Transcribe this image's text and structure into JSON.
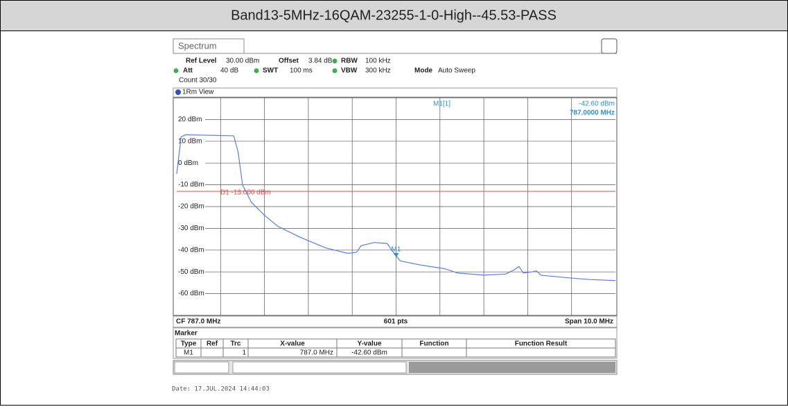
{
  "header": {
    "title": "Band13-5MHz-16QAM-23255-1-0-High--45.53-PASS"
  },
  "instrument": {
    "tab": "Spectrum",
    "settings": [
      {
        "label": "Ref Level",
        "value": "30.00 dBm"
      },
      {
        "label": "Offset",
        "value": "3.84 dB"
      },
      {
        "label": "RBW",
        "value": "100 kHz"
      },
      {
        "label": "Att",
        "value": "40 dB"
      },
      {
        "label": "SWT",
        "value": "100 ms"
      },
      {
        "label": "VBW",
        "value": "300 kHz"
      },
      {
        "label": "Mode",
        "value": "Auto Sweep"
      }
    ],
    "count": "Count 30/30",
    "view": "1Rm View",
    "readout": {
      "name": "M1[1]",
      "level": "-42.60 dBm",
      "frequency": "787.0000 MHz"
    },
    "footer": {
      "center_frequency": "CF 787.0 MHz",
      "points": "601 pts",
      "span": "Span 10.0 MHz"
    },
    "marker_table": {
      "title": "Marker",
      "columns": [
        "Type",
        "Ref",
        "Trc",
        "X-value",
        "Y-value",
        "Function",
        "Function Result"
      ],
      "row": {
        "type": "M1",
        "trace": "1",
        "x": "787.0 MHz",
        "y": "-42.60 dBm"
      }
    },
    "date": "Date: 17.JUL.2024  14:44:03"
  },
  "chart_data": {
    "type": "line",
    "xlim": [
      782,
      792
    ],
    "ylim": [
      -70,
      30
    ],
    "yticks": [
      {
        "value": 20,
        "label": "20 dBm"
      },
      {
        "value": 10,
        "label": "10 dBm"
      },
      {
        "value": 0,
        "label": "0 dBm"
      },
      {
        "value": -10,
        "label": "-10 dBm"
      },
      {
        "value": -20,
        "label": "-20 dBm"
      },
      {
        "value": -30,
        "label": "-30 dBm"
      },
      {
        "value": -40,
        "label": "-40 dBm"
      },
      {
        "value": -50,
        "label": "-50 dBm"
      },
      {
        "value": -60,
        "label": "-60 dBm"
      }
    ],
    "grid": true,
    "x": [
      782.0,
      782.1,
      782.2,
      783.3,
      783.4,
      783.5,
      783.7,
      784.0,
      784.3,
      784.8,
      785.4,
      785.9,
      786.1,
      786.2,
      786.5,
      786.8,
      786.9,
      787.0,
      787.1,
      787.6,
      788.1,
      788.4,
      789.0,
      789.5,
      789.7,
      789.8,
      789.9,
      790.1,
      790.2,
      790.3,
      790.8,
      791.4,
      792.0
    ],
    "series": [
      {
        "color": "#5b7de3",
        "values": [
          -5,
          12,
          13,
          12.5,
          5,
          -10,
          -18,
          -24,
          -29,
          -34,
          -39,
          -41.5,
          -41,
          -38,
          -36.5,
          -37,
          -40,
          -42.6,
          -45,
          -47,
          -48.5,
          -50.5,
          -51.5,
          -51,
          -49,
          -47.5,
          -50.5,
          -50,
          -49.5,
          -51.5,
          -52.5,
          -53.5,
          -54
        ]
      }
    ],
    "limit_line": {
      "value": -13,
      "label": "D1 -13.000 dBm",
      "color": "#e04848"
    },
    "marker": {
      "name": "M1",
      "x": 787.0,
      "y": -42.6,
      "color": "#2a90d8"
    }
  }
}
